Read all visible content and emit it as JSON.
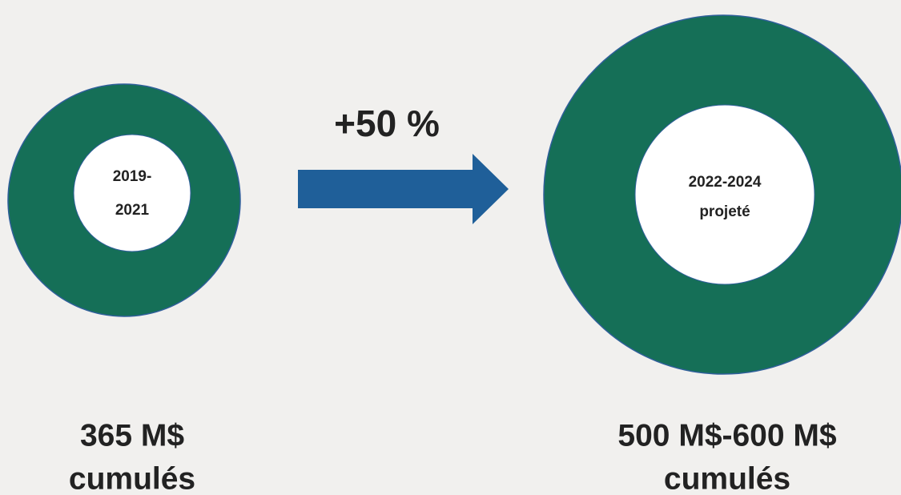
{
  "nodes": [
    {
      "lines": [
        "2019-",
        "2021"
      ],
      "caption": [
        "365 M$",
        "cumulés"
      ]
    },
    {
      "lines": [
        "2022-2024",
        "projeté"
      ],
      "caption": [
        "500 M$-600 M$",
        "cumulés"
      ]
    }
  ],
  "arrow": {
    "label": "+50 %"
  }
}
